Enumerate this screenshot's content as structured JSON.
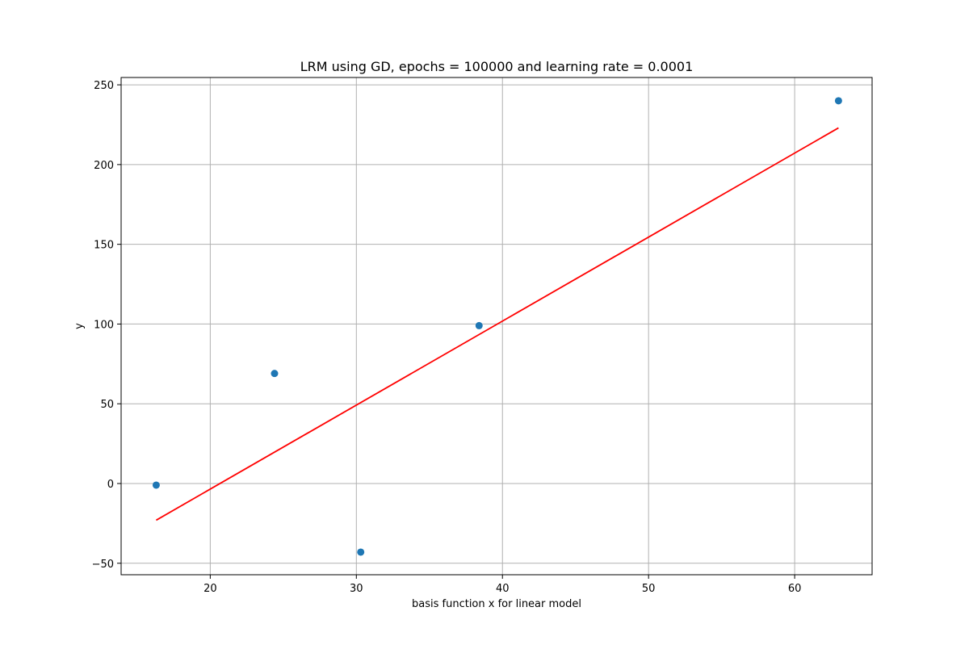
{
  "chart_data": {
    "type": "scatter",
    "title": "LRM using GD, epochs = 100000 and learning rate = 0.0001",
    "xlabel": "basis function x for linear model",
    "ylabel": "y",
    "xlim": [
      13.9,
      65.3
    ],
    "ylim": [
      -57.2,
      254.6
    ],
    "xticks": [
      20,
      30,
      40,
      50,
      60
    ],
    "yticks": [
      -50,
      0,
      50,
      100,
      150,
      200,
      250
    ],
    "grid": true,
    "series": [
      {
        "kind": "scatter",
        "color": "#1f77b4",
        "points": [
          {
            "x": 16.3,
            "y": -1
          },
          {
            "x": 24.4,
            "y": 69
          },
          {
            "x": 30.3,
            "y": -43
          },
          {
            "x": 38.4,
            "y": 99
          },
          {
            "x": 63.0,
            "y": 240
          }
        ]
      },
      {
        "kind": "line",
        "color": "#ff0000",
        "points": [
          {
            "x": 16.3,
            "y": -23
          },
          {
            "x": 63.0,
            "y": 223
          }
        ]
      }
    ]
  }
}
